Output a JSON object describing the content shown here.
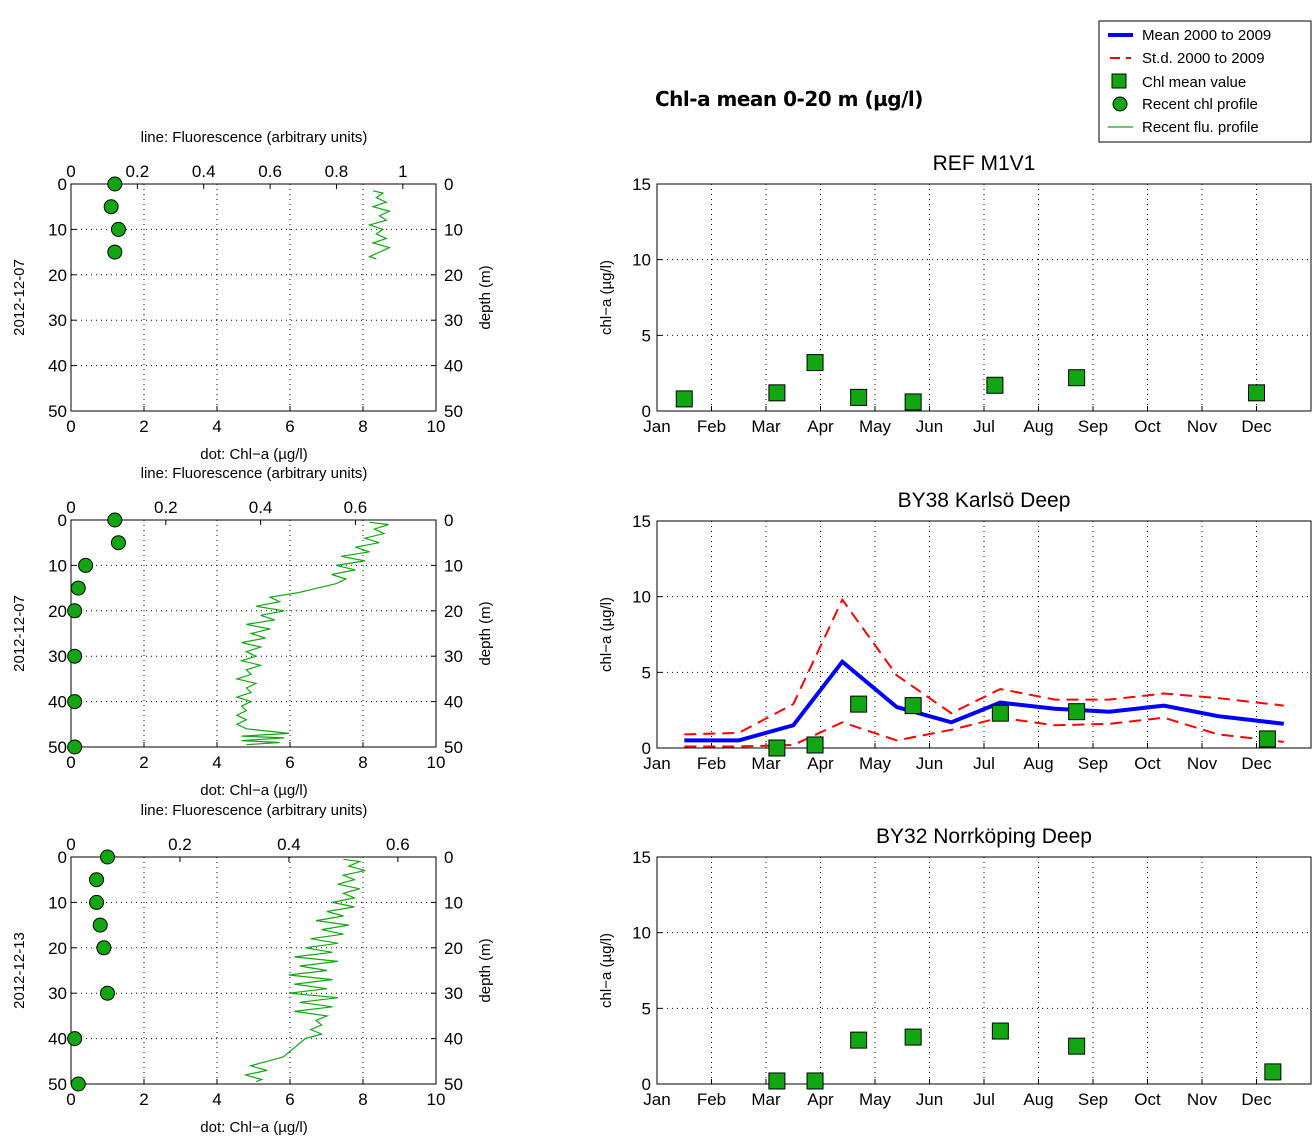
{
  "page_title": "Chl-a mean 0-20 m (µg/l)",
  "legend": {
    "items": [
      {
        "label": "Mean 2000 to 2009",
        "color": "#0000ff",
        "kind": "thick-line"
      },
      {
        "label": "St.d. 2000 to 2009",
        "color": "#ff0000",
        "kind": "dashed-line"
      },
      {
        "label": "Chl mean value",
        "color": "#13a613",
        "kind": "square"
      },
      {
        "label": "Recent chl profile",
        "color": "#13a613",
        "kind": "circle"
      },
      {
        "label": "Recent flu. profile",
        "color": "#13a613",
        "kind": "thin-line"
      }
    ]
  },
  "profile_labels": {
    "top_axis": "line: Fluorescence (arbitrary units)",
    "bottom_axis": "dot: Chl−a (µg/l)",
    "right_axis": "depth (m)"
  },
  "chart_data": [
    {
      "type": "scatter",
      "panel": "profile-1",
      "date_label": "2012-12-07",
      "xlim_chl": [
        0,
        10
      ],
      "xlim_flu": [
        0,
        1.1
      ],
      "ylim_depth": [
        0,
        50
      ],
      "flu_ticks": [
        "0",
        "0.2",
        "0.4",
        "0.6",
        "0.8",
        "1"
      ],
      "chl_points": [
        [
          1.2,
          0
        ],
        [
          1.1,
          5
        ],
        [
          1.3,
          10
        ],
        [
          1.2,
          15
        ]
      ],
      "flu_profile": [
        [
          0.91,
          1.5
        ],
        [
          0.94,
          2
        ],
        [
          0.92,
          3
        ],
        [
          0.95,
          4
        ],
        [
          0.91,
          5
        ],
        [
          0.96,
          6
        ],
        [
          0.93,
          7
        ],
        [
          0.95,
          8
        ],
        [
          0.9,
          9
        ],
        [
          0.94,
          10
        ],
        [
          0.92,
          11
        ],
        [
          0.95,
          12
        ],
        [
          0.91,
          13
        ],
        [
          0.96,
          14
        ],
        [
          0.93,
          15
        ],
        [
          0.9,
          16
        ],
        [
          0.92,
          16.5
        ]
      ],
      "grid": true
    },
    {
      "type": "scatter",
      "panel": "profile-2",
      "date_label": "2012-12-07",
      "xlim_chl": [
        0,
        10
      ],
      "xlim_flu": [
        0,
        0.77
      ],
      "ylim_depth": [
        0,
        50
      ],
      "flu_ticks": [
        "0",
        "0.2",
        "0.4",
        "0.6"
      ],
      "chl_points": [
        [
          1.2,
          0
        ],
        [
          1.3,
          5
        ],
        [
          0.4,
          10
        ],
        [
          0.2,
          15
        ],
        [
          0.1,
          20
        ],
        [
          0.1,
          30
        ],
        [
          0.1,
          40
        ],
        [
          0.1,
          50
        ]
      ],
      "flu_profile": [
        [
          0.63,
          0.5
        ],
        [
          0.67,
          1
        ],
        [
          0.64,
          2
        ],
        [
          0.66,
          3
        ],
        [
          0.62,
          4
        ],
        [
          0.65,
          5
        ],
        [
          0.6,
          6
        ],
        [
          0.63,
          7
        ],
        [
          0.57,
          8
        ],
        [
          0.62,
          9
        ],
        [
          0.56,
          10
        ],
        [
          0.6,
          11
        ],
        [
          0.55,
          12
        ],
        [
          0.58,
          13
        ],
        [
          0.56,
          14
        ],
        [
          0.52,
          15
        ],
        [
          0.48,
          16
        ],
        [
          0.42,
          17
        ],
        [
          0.44,
          18
        ],
        [
          0.39,
          19
        ],
        [
          0.45,
          20
        ],
        [
          0.4,
          21
        ],
        [
          0.43,
          22
        ],
        [
          0.37,
          23
        ],
        [
          0.42,
          24
        ],
        [
          0.38,
          25
        ],
        [
          0.41,
          26
        ],
        [
          0.36,
          27
        ],
        [
          0.4,
          28
        ],
        [
          0.37,
          29
        ],
        [
          0.39,
          30
        ],
        [
          0.36,
          31
        ],
        [
          0.4,
          32
        ],
        [
          0.37,
          33
        ],
        [
          0.38,
          34
        ],
        [
          0.35,
          35
        ],
        [
          0.39,
          36
        ],
        [
          0.37,
          37
        ],
        [
          0.38,
          38
        ],
        [
          0.35,
          39
        ],
        [
          0.38,
          40
        ],
        [
          0.36,
          41
        ],
        [
          0.37,
          42
        ],
        [
          0.35,
          43
        ],
        [
          0.37,
          44
        ],
        [
          0.35,
          45
        ],
        [
          0.37,
          46
        ],
        [
          0.46,
          47
        ],
        [
          0.36,
          47.6
        ],
        [
          0.45,
          48
        ],
        [
          0.36,
          48.6
        ],
        [
          0.44,
          49
        ],
        [
          0.37,
          49.5
        ]
      ],
      "grid": true
    },
    {
      "type": "scatter",
      "panel": "profile-3",
      "date_label": "2012-12-13",
      "xlim_chl": [
        0,
        10
      ],
      "xlim_flu": [
        0,
        0.67
      ],
      "ylim_depth": [
        0,
        50
      ],
      "flu_ticks": [
        "0",
        "0.2",
        "0.4",
        "0.6"
      ],
      "chl_points": [
        [
          1.0,
          0
        ],
        [
          0.7,
          5
        ],
        [
          0.7,
          10
        ],
        [
          0.8,
          15
        ],
        [
          0.9,
          20
        ],
        [
          1.0,
          30
        ],
        [
          0.1,
          40
        ],
        [
          0.2,
          50
        ]
      ],
      "flu_profile": [
        [
          0.5,
          0.5
        ],
        [
          0.53,
          1
        ],
        [
          0.51,
          2
        ],
        [
          0.54,
          3
        ],
        [
          0.5,
          4
        ],
        [
          0.52,
          5
        ],
        [
          0.49,
          6
        ],
        [
          0.53,
          7
        ],
        [
          0.5,
          8
        ],
        [
          0.52,
          9
        ],
        [
          0.48,
          10
        ],
        [
          0.52,
          11
        ],
        [
          0.47,
          12
        ],
        [
          0.5,
          13
        ],
        [
          0.45,
          14
        ],
        [
          0.51,
          15
        ],
        [
          0.46,
          16
        ],
        [
          0.5,
          17
        ],
        [
          0.44,
          18
        ],
        [
          0.49,
          19
        ],
        [
          0.43,
          20
        ],
        [
          0.48,
          21
        ],
        [
          0.41,
          22
        ],
        [
          0.49,
          23
        ],
        [
          0.42,
          24
        ],
        [
          0.47,
          25
        ],
        [
          0.4,
          26
        ],
        [
          0.48,
          27
        ],
        [
          0.41,
          28
        ],
        [
          0.47,
          29
        ],
        [
          0.4,
          30
        ],
        [
          0.49,
          31
        ],
        [
          0.42,
          32
        ],
        [
          0.48,
          33
        ],
        [
          0.41,
          34
        ],
        [
          0.47,
          35
        ],
        [
          0.45,
          36
        ],
        [
          0.46,
          37
        ],
        [
          0.44,
          38
        ],
        [
          0.46,
          39
        ],
        [
          0.43,
          40
        ],
        [
          0.42,
          41
        ],
        [
          0.41,
          42
        ],
        [
          0.4,
          43
        ],
        [
          0.39,
          44
        ],
        [
          0.36,
          45
        ],
        [
          0.33,
          46
        ],
        [
          0.36,
          47
        ],
        [
          0.32,
          48
        ],
        [
          0.35,
          49
        ],
        [
          0.34,
          49.5
        ]
      ],
      "grid": true
    },
    {
      "type": "line",
      "panel": "station-1",
      "title": "REF M1V1",
      "ylabel": "chl−a (µg/l)",
      "ylim": [
        0,
        15
      ],
      "yticks": [
        0,
        5,
        10,
        15
      ],
      "months": [
        "Jan",
        "Feb",
        "Mar",
        "Apr",
        "May",
        "Jun",
        "Jul",
        "Aug",
        "Sep",
        "Oct",
        "Nov",
        "Dec"
      ],
      "mean_values": [
        [
          1.5,
          0.8
        ],
        [
          3.2,
          1.2
        ],
        [
          3.9,
          3.2
        ],
        [
          4.7,
          0.9
        ],
        [
          5.7,
          0.6
        ],
        [
          7.2,
          1.7
        ],
        [
          8.7,
          2.2
        ],
        [
          12.0,
          1.2
        ]
      ],
      "series": [],
      "grid": true
    },
    {
      "type": "line",
      "panel": "station-2",
      "title": "BY38 Karlsö Deep",
      "ylabel": "chl−a (µg/l)",
      "ylim": [
        0,
        15
      ],
      "yticks": [
        0,
        5,
        10,
        15
      ],
      "months": [
        "Jan",
        "Feb",
        "Mar",
        "Apr",
        "May",
        "Jun",
        "Jul",
        "Aug",
        "Sep",
        "Oct",
        "Nov",
        "Dec"
      ],
      "series": [
        {
          "name": "Mean 2000 to 2009",
          "points": [
            [
              1.5,
              0.5
            ],
            [
              2.5,
              0.5
            ],
            [
              3.5,
              1.5
            ],
            [
              4.4,
              5.7
            ],
            [
              5.4,
              2.7
            ],
            [
              6.4,
              1.7
            ],
            [
              7.3,
              3.0
            ],
            [
              8.3,
              2.6
            ],
            [
              9.3,
              2.4
            ],
            [
              10.3,
              2.8
            ],
            [
              11.3,
              2.1
            ],
            [
              12.5,
              1.6
            ]
          ]
        },
        {
          "name": "St.d. 2000 to 2009",
          "points": [
            [
              1.5,
              0.9
            ],
            [
              2.5,
              1.0
            ],
            [
              3.5,
              2.9
            ],
            [
              4.4,
              9.8
            ],
            [
              5.4,
              4.8
            ],
            [
              6.4,
              2.3
            ],
            [
              7.3,
              3.9
            ],
            [
              8.3,
              3.2
            ],
            [
              9.3,
              3.2
            ],
            [
              10.3,
              3.6
            ],
            [
              11.3,
              3.3
            ],
            [
              12.5,
              2.8
            ]
          ]
        },
        {
          "name": "St.d. 2000 to 2009",
          "points": [
            [
              1.5,
              0.1
            ],
            [
              2.5,
              0.1
            ],
            [
              3.5,
              0.2
            ],
            [
              4.4,
              1.7
            ],
            [
              5.4,
              0.5
            ],
            [
              6.4,
              1.2
            ],
            [
              7.3,
              2.0
            ],
            [
              8.3,
              1.5
            ],
            [
              9.3,
              1.6
            ],
            [
              10.3,
              2.0
            ],
            [
              11.3,
              0.9
            ],
            [
              12.5,
              0.4
            ]
          ]
        }
      ],
      "mean_values": [
        [
          3.2,
          0.0
        ],
        [
          3.9,
          0.2
        ],
        [
          4.7,
          2.9
        ],
        [
          5.7,
          2.8
        ],
        [
          7.3,
          2.3
        ],
        [
          8.7,
          2.4
        ],
        [
          12.2,
          0.6
        ]
      ],
      "grid": true
    },
    {
      "type": "line",
      "panel": "station-3",
      "title": "BY32 Norrköping Deep",
      "ylabel": "chl−a (µg/l)",
      "ylim": [
        0,
        15
      ],
      "yticks": [
        0,
        5,
        10,
        15
      ],
      "months": [
        "Jan",
        "Feb",
        "Mar",
        "Apr",
        "May",
        "Jun",
        "Jul",
        "Aug",
        "Sep",
        "Oct",
        "Nov",
        "Dec"
      ],
      "series": [],
      "mean_values": [
        [
          3.2,
          0.2
        ],
        [
          3.9,
          0.2
        ],
        [
          4.7,
          2.9
        ],
        [
          5.7,
          3.1
        ],
        [
          7.3,
          3.5
        ],
        [
          8.7,
          2.5
        ],
        [
          12.3,
          0.8
        ]
      ],
      "grid": true
    }
  ]
}
